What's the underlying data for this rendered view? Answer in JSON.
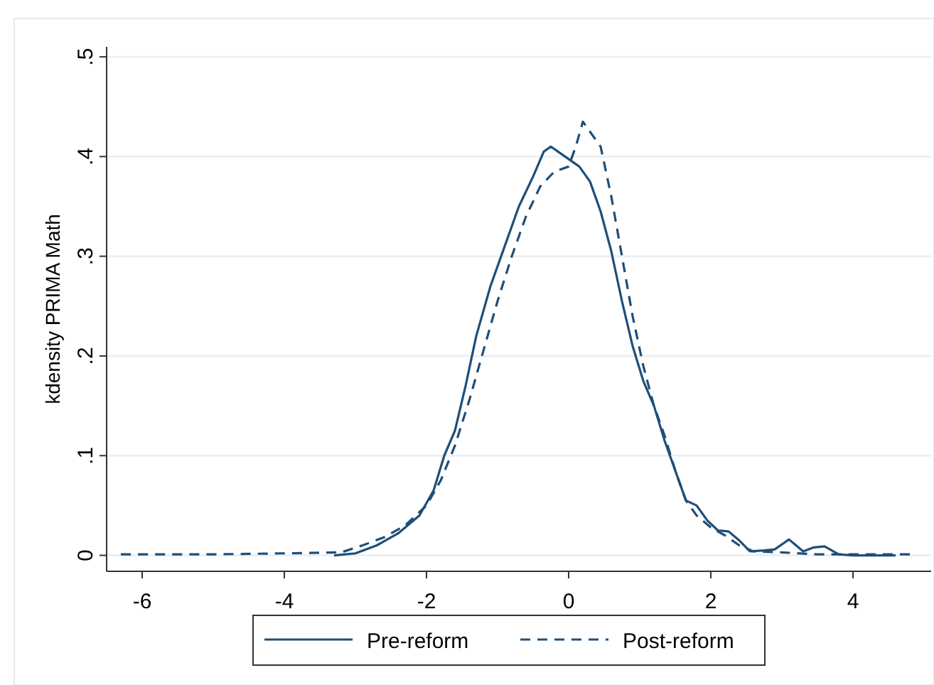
{
  "chart_data": {
    "type": "line",
    "ylabel": "kdensity PRIMA Math",
    "xlim": [
      -6.5,
      5.1
    ],
    "ylim": [
      -0.016,
      0.51
    ],
    "xticks": [
      -6,
      -4,
      -2,
      0,
      2,
      4
    ],
    "yticks": [
      {
        "value": 0,
        "label": "0"
      },
      {
        "value": 0.1,
        "label": ".1"
      },
      {
        "value": 0.2,
        "label": ".2"
      },
      {
        "value": 0.3,
        "label": ".3"
      },
      {
        "value": 0.4,
        "label": ".4"
      },
      {
        "value": 0.5,
        "label": ".5"
      }
    ],
    "grid": "y",
    "legend": "bottom",
    "series": [
      {
        "name": "Pre-reform",
        "color": "#1f4e79",
        "line_style": "solid",
        "x": [
          -3.3,
          -3.0,
          -2.7,
          -2.4,
          -2.1,
          -1.9,
          -1.75,
          -1.6,
          -1.45,
          -1.3,
          -1.1,
          -0.9,
          -0.7,
          -0.5,
          -0.35,
          -0.25,
          -0.15,
          -0.05,
          0.05,
          0.15,
          0.3,
          0.45,
          0.6,
          0.75,
          0.9,
          1.05,
          1.2,
          1.35,
          1.5,
          1.65,
          1.8,
          1.95,
          2.1,
          2.25,
          2.4,
          2.55,
          2.75,
          2.9,
          3.1,
          3.3,
          3.45,
          3.6,
          3.8,
          4.0,
          4.6
        ],
        "values": [
          0,
          0.002,
          0.01,
          0.022,
          0.04,
          0.065,
          0.1,
          0.125,
          0.17,
          0.22,
          0.27,
          0.31,
          0.35,
          0.38,
          0.405,
          0.41,
          0.405,
          0.4,
          0.395,
          0.39,
          0.375,
          0.345,
          0.305,
          0.255,
          0.21,
          0.175,
          0.15,
          0.115,
          0.085,
          0.055,
          0.05,
          0.035,
          0.025,
          0.024,
          0.015,
          0.004,
          0.005,
          0.006,
          0.016,
          0.004,
          0.008,
          0.009,
          0.001,
          0,
          0
        ]
      },
      {
        "name": "Post-reform",
        "color": "#1f4e79",
        "line_style": "dashed",
        "x": [
          -6.3,
          -5,
          -4,
          -3.2,
          -2.9,
          -2.6,
          -2.3,
          -2.0,
          -1.8,
          -1.6,
          -1.4,
          -1.2,
          -1.0,
          -0.8,
          -0.6,
          -0.4,
          -0.2,
          0,
          0.1,
          0.2,
          0.3,
          0.45,
          0.6,
          0.75,
          0.9,
          1.05,
          1.2,
          1.35,
          1.5,
          1.65,
          1.8,
          2.0,
          2.2,
          2.4,
          2.6,
          3.0,
          3.5,
          4.0,
          4.8
        ],
        "values": [
          0.001,
          0.001,
          0.002,
          0.003,
          0.01,
          0.018,
          0.03,
          0.05,
          0.075,
          0.11,
          0.155,
          0.205,
          0.255,
          0.3,
          0.34,
          0.37,
          0.385,
          0.39,
          0.41,
          0.435,
          0.425,
          0.41,
          0.36,
          0.3,
          0.24,
          0.19,
          0.15,
          0.12,
          0.085,
          0.055,
          0.04,
          0.028,
          0.02,
          0.01,
          0.004,
          0.003,
          0.001,
          0.001,
          0.001
        ]
      }
    ]
  }
}
